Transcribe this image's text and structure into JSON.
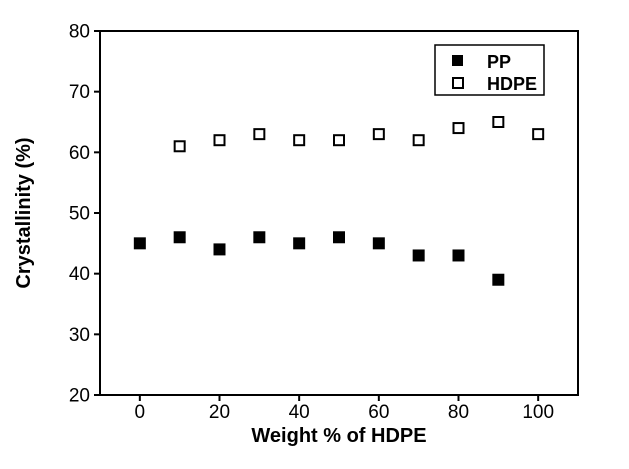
{
  "figure": {
    "background_color": "#ffffff",
    "frame_color": "#000000"
  },
  "chart_data": {
    "type": "scatter",
    "title": "",
    "xlabel": "Weight % of HDPE",
    "ylabel": "Crystallinity (%)",
    "xlim": [
      -10,
      110
    ],
    "ylim": [
      20,
      80
    ],
    "x_ticks": [
      0,
      20,
      40,
      60,
      80,
      100
    ],
    "y_ticks": [
      20,
      30,
      40,
      50,
      60,
      70,
      80
    ],
    "grid": false,
    "legend_position": "top-right",
    "series": [
      {
        "name": "PP",
        "marker": "filled-square",
        "color": "#000000",
        "x": [
          0,
          10,
          20,
          30,
          40,
          50,
          60,
          70,
          80,
          90
        ],
        "y": [
          45,
          46,
          44,
          46,
          45,
          46,
          45,
          43,
          43,
          39
        ]
      },
      {
        "name": "HDPE",
        "marker": "open-square",
        "color": "#000000",
        "x": [
          10,
          20,
          30,
          40,
          50,
          60,
          70,
          80,
          90,
          100
        ],
        "y": [
          61,
          62,
          63,
          62,
          62,
          63,
          62,
          64,
          65,
          63
        ]
      }
    ]
  }
}
